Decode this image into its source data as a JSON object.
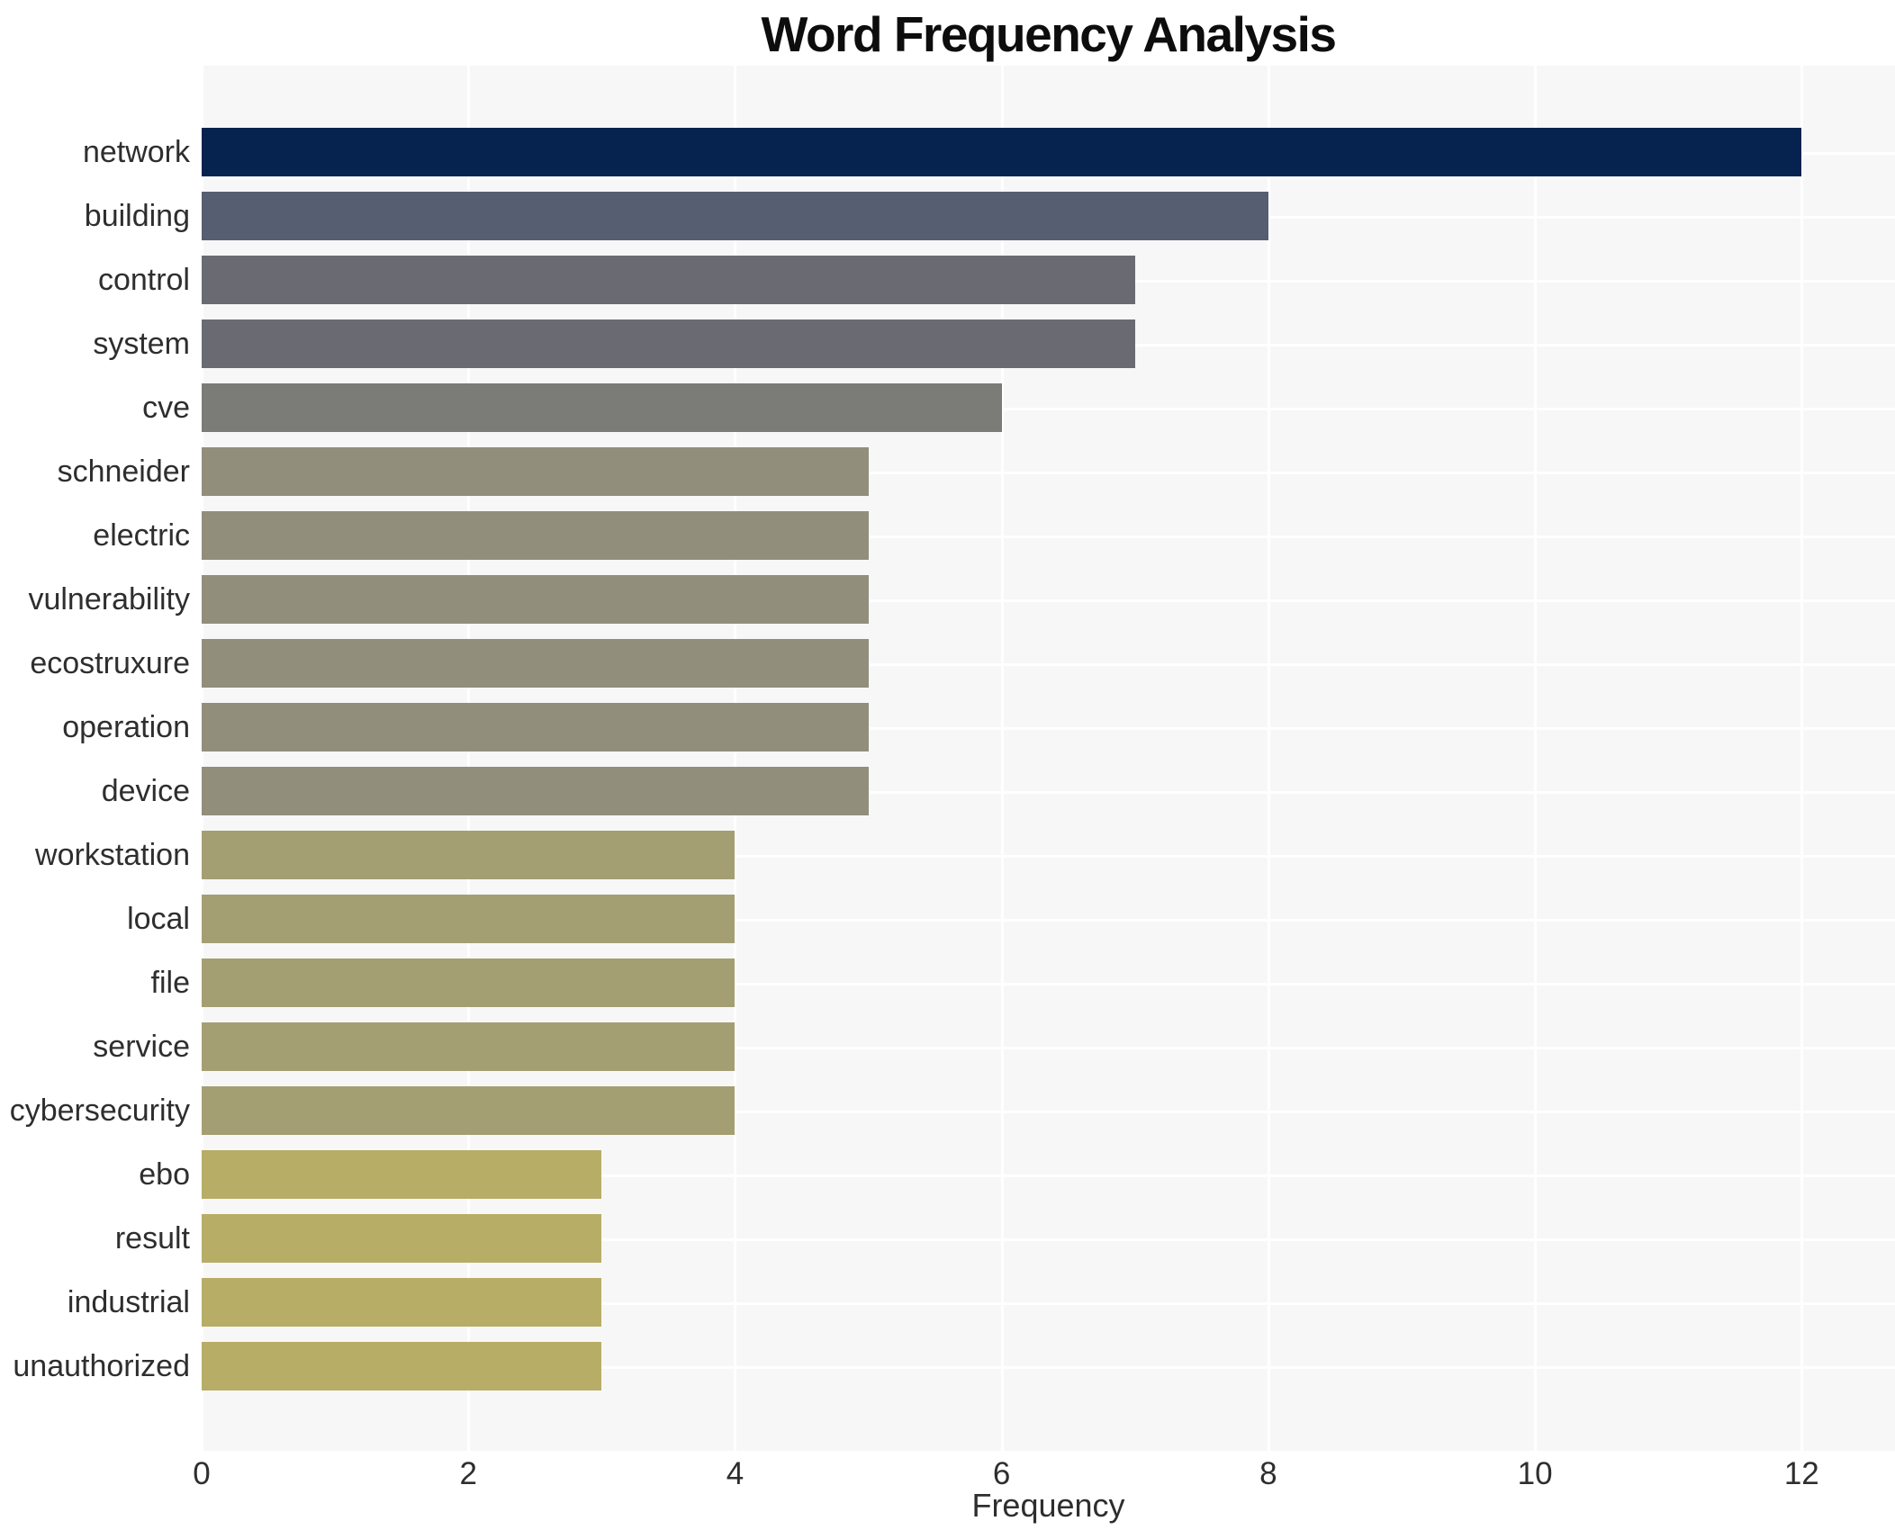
{
  "chart_data": {
    "type": "bar",
    "orientation": "horizontal",
    "title": "Word Frequency Analysis",
    "xlabel": "Frequency",
    "ylabel": "",
    "xlim": [
      0,
      12.7
    ],
    "xticks": [
      0,
      2,
      4,
      6,
      8,
      10,
      12
    ],
    "grid": true,
    "legend": false,
    "categories": [
      "network",
      "building",
      "control",
      "system",
      "cve",
      "schneider",
      "electric",
      "vulnerability",
      "ecostruxure",
      "operation",
      "device",
      "workstation",
      "local",
      "file",
      "service",
      "cybersecurity",
      "ebo",
      "result",
      "industrial",
      "unauthorized"
    ],
    "values": [
      12,
      8,
      7,
      7,
      6,
      5,
      5,
      5,
      5,
      5,
      5,
      4,
      4,
      4,
      4,
      4,
      3,
      3,
      3,
      3
    ],
    "bar_colors": [
      "#06234f",
      "#565e72",
      "#6a6a72",
      "#6a6a72",
      "#7b7b78",
      "#918e7b",
      "#918e7b",
      "#918e7b",
      "#918e7b",
      "#918e7b",
      "#918e7b",
      "#a49e73",
      "#a49e73",
      "#a49e73",
      "#a49e73",
      "#a49e73",
      "#b7ad66",
      "#b7ad66",
      "#b7ad66",
      "#b7ad66"
    ]
  },
  "style": {
    "plot_background": "#f7f7f8",
    "grid_color": "#ffffff",
    "tick_text_color": "#2e2e2e",
    "title_color": "#0d0d0d"
  }
}
